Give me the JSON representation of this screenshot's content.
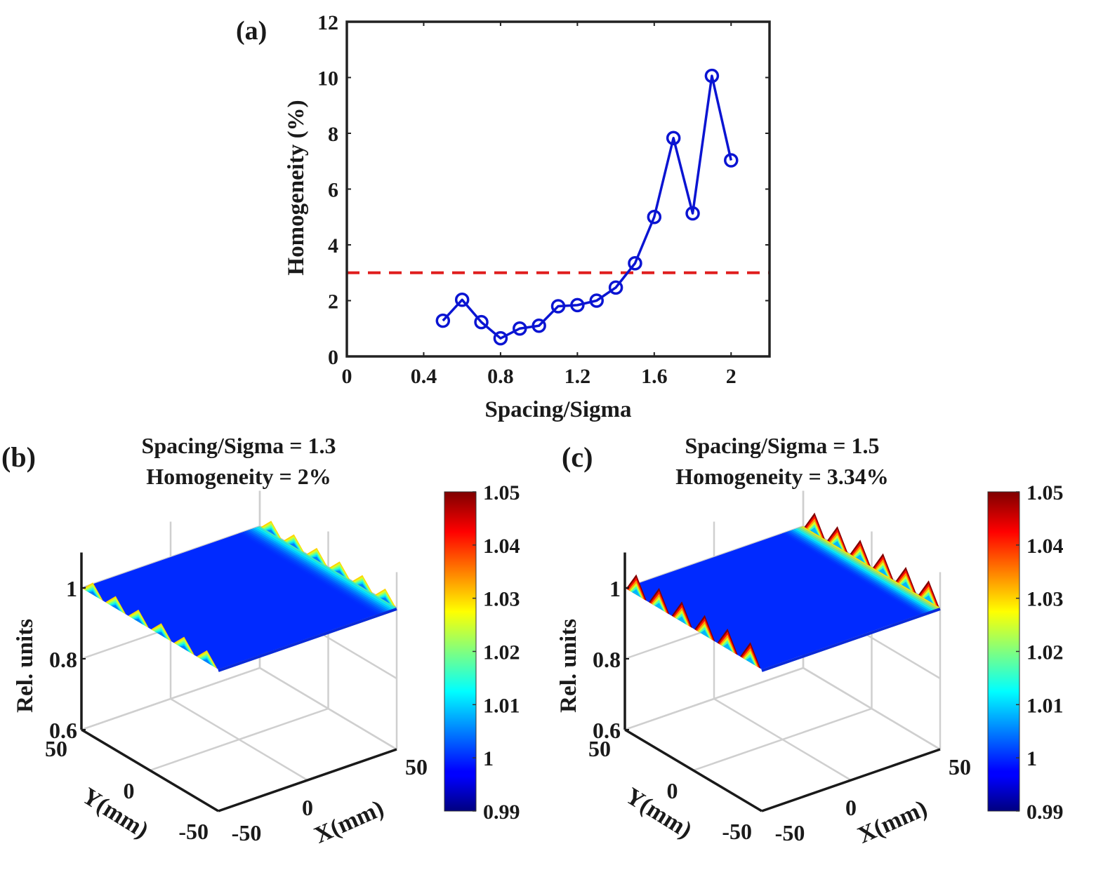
{
  "chart_data": [
    {
      "panel": "(a)",
      "type": "line",
      "title": "",
      "xlabel": "Spacing/Sigma",
      "ylabel": "Homogeneity (%)",
      "xlim": [
        0,
        2.2
      ],
      "ylim": [
        0,
        12
      ],
      "xticks": [
        0,
        0.4,
        0.8,
        1.2,
        1.6,
        2
      ],
      "xtick_labels": [
        "0",
        "0.4",
        "0.8",
        "1.2",
        "1.6",
        "2"
      ],
      "yticks": [
        0,
        2,
        4,
        6,
        8,
        10,
        12
      ],
      "ytick_labels": [
        "0",
        "2",
        "4",
        "6",
        "8",
        "10",
        "12"
      ],
      "grid": false,
      "series": [
        {
          "name": "Homogeneity",
          "color": "#0a14d2",
          "marker": "circle",
          "x": [
            0.5,
            0.6,
            0.7,
            0.8,
            0.9,
            1.0,
            1.1,
            1.2,
            1.3,
            1.4,
            1.5,
            1.6,
            1.7,
            1.8,
            1.9,
            2.0
          ],
          "y": [
            1.28,
            2.03,
            1.23,
            0.65,
            1.0,
            1.1,
            1.8,
            1.84,
            2.0,
            2.47,
            3.34,
            5.0,
            7.83,
            5.13,
            10.06,
            7.03
          ]
        }
      ],
      "reference_lines": [
        {
          "axis": "y",
          "value": 3,
          "style": "dashed",
          "color": "#e01e1e"
        }
      ]
    },
    {
      "panel": "(b)",
      "type": "surface",
      "title_lines": [
        "Spacing/Sigma = 1.3",
        "Homogeneity = 2%"
      ],
      "xlabel": "X(mm)",
      "ylabel": "Y(mm)",
      "zlabel": "Rel. units",
      "xlim": [
        -50,
        50
      ],
      "ylim": [
        -50,
        50
      ],
      "zlim": [
        0.6,
        1.1
      ],
      "xtick_labels": [
        "-50",
        "0",
        "50"
      ],
      "ytick_labels": [
        "50",
        "0",
        "-50"
      ],
      "ztick_labels": [
        "0.6",
        "0.8",
        "1"
      ],
      "colorbar": {
        "min": 0.99,
        "max": 1.05,
        "tick_labels": [
          "1.05",
          "1.04",
          "1.03",
          "1.02",
          "1.01",
          "1",
          "0.99"
        ],
        "colormap": "jet"
      },
      "surface_level": 1.0,
      "edge_ripple_peak": 1.03,
      "edge_ripple_count": 6
    },
    {
      "panel": "(c)",
      "type": "surface",
      "title_lines": [
        "Spacing/Sigma = 1.5",
        "Homogeneity = 3.34%"
      ],
      "xlabel": "X(mm)",
      "ylabel": "Y(mm)",
      "zlabel": "Rel. units",
      "xlim": [
        -50,
        50
      ],
      "ylim": [
        -50,
        50
      ],
      "zlim": [
        0.6,
        1.1
      ],
      "xtick_labels": [
        "-50",
        "0",
        "50"
      ],
      "ytick_labels": [
        "50",
        "0",
        "-50"
      ],
      "ztick_labels": [
        "0.6",
        "0.8",
        "1"
      ],
      "colorbar": {
        "min": 0.99,
        "max": 1.05,
        "tick_labels": [
          "1.05",
          "1.04",
          "1.03",
          "1.02",
          "1.01",
          "1",
          "0.99"
        ],
        "colormap": "jet"
      },
      "surface_level": 1.0,
      "edge_ripple_peak": 1.05,
      "edge_ripple_count": 6
    }
  ]
}
